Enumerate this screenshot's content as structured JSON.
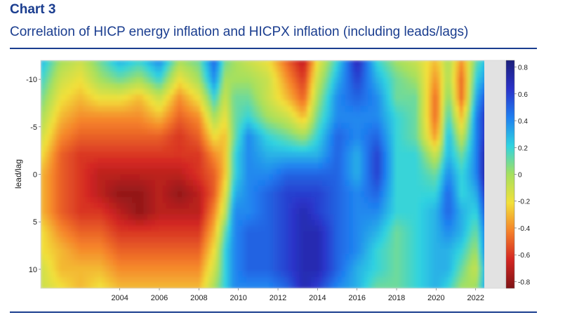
{
  "header": {
    "label": "Chart 3",
    "title": "Correlation of HICP energy inflation and HICPX inflation (including leads/lags)"
  },
  "colors": {
    "accent": "#1a3d8f",
    "colormap": [
      "#7f1416",
      "#d32622",
      "#f5812a",
      "#f2e03a",
      "#a6e05e",
      "#30d3e0",
      "#1f7ff0",
      "#2a32c8",
      "#1c1f7a"
    ]
  },
  "chart_data": {
    "type": "heatmap",
    "title": "",
    "xlabel": "",
    "ylabel": "lead/lag",
    "x_range": [
      2000.0,
      2023.5
    ],
    "data_end": 2023.1,
    "y_range": [
      -12,
      12
    ],
    "y_reversed": true,
    "x_ticks": [
      "2004",
      "2006",
      "2008",
      "2010",
      "2012",
      "2014",
      "2016",
      "2018",
      "2020",
      "2022"
    ],
    "y_ticks": [
      "-10",
      "-5",
      "0",
      "5",
      "10"
    ],
    "colorbar": {
      "min": -0.85,
      "max": 0.85,
      "ticks": [
        "0.8",
        "0.6",
        "0.4",
        "0.2",
        "0",
        "-0.2",
        "-0.4",
        "-0.6",
        "-0.8"
      ]
    },
    "grid": false,
    "y_samples": [
      -12,
      -10,
      -8,
      -6,
      -4,
      -2,
      0,
      2,
      4,
      6,
      8,
      10,
      12
    ],
    "columns": [
      {
        "x": 2000.0,
        "values": [
          0.3,
          0.2,
          0.1,
          0.0,
          -0.1,
          -0.2,
          -0.3,
          -0.3,
          -0.3,
          -0.2,
          -0.2,
          -0.1,
          -0.1
        ]
      },
      {
        "x": 2001.0,
        "values": [
          0.0,
          -0.1,
          -0.2,
          -0.3,
          -0.4,
          -0.5,
          -0.5,
          -0.5,
          -0.5,
          -0.4,
          -0.3,
          -0.3,
          -0.2
        ]
      },
      {
        "x": 2002.0,
        "values": [
          -0.1,
          -0.2,
          -0.3,
          -0.4,
          -0.5,
          -0.6,
          -0.6,
          -0.6,
          -0.6,
          -0.5,
          -0.4,
          -0.3,
          -0.3
        ]
      },
      {
        "x": 2003.0,
        "values": [
          0.1,
          0.0,
          -0.2,
          -0.4,
          -0.5,
          -0.6,
          -0.7,
          -0.7,
          -0.6,
          -0.5,
          -0.4,
          -0.3,
          -0.2
        ]
      },
      {
        "x": 2004.0,
        "values": [
          0.3,
          0.1,
          -0.2,
          -0.4,
          -0.5,
          -0.6,
          -0.7,
          -0.8,
          -0.7,
          -0.6,
          -0.5,
          -0.4,
          -0.3
        ]
      },
      {
        "x": 2005.0,
        "values": [
          0.2,
          0.0,
          -0.3,
          -0.4,
          -0.5,
          -0.6,
          -0.7,
          -0.8,
          -0.8,
          -0.6,
          -0.5,
          -0.4,
          -0.3
        ]
      },
      {
        "x": 2006.0,
        "values": [
          0.4,
          0.2,
          -0.1,
          -0.3,
          -0.5,
          -0.6,
          -0.7,
          -0.7,
          -0.7,
          -0.6,
          -0.5,
          -0.4,
          -0.3
        ]
      },
      {
        "x": 2007.0,
        "values": [
          0.0,
          -0.2,
          -0.4,
          -0.5,
          -0.6,
          -0.6,
          -0.7,
          -0.8,
          -0.7,
          -0.6,
          -0.5,
          -0.4,
          -0.3
        ]
      },
      {
        "x": 2008.0,
        "values": [
          0.1,
          0.0,
          -0.2,
          -0.4,
          -0.5,
          -0.6,
          -0.6,
          -0.7,
          -0.7,
          -0.6,
          -0.5,
          -0.4,
          -0.3
        ]
      },
      {
        "x": 2008.8,
        "values": [
          0.5,
          0.4,
          0.2,
          0.0,
          -0.2,
          -0.4,
          -0.5,
          -0.5,
          -0.4,
          -0.3,
          -0.2,
          -0.1,
          0.0
        ]
      },
      {
        "x": 2009.3,
        "values": [
          0.1,
          0.0,
          -0.1,
          -0.2,
          -0.3,
          -0.3,
          -0.3,
          -0.2,
          -0.1,
          0.1,
          0.2,
          0.2,
          0.2
        ]
      },
      {
        "x": 2009.8,
        "values": [
          0.0,
          0.0,
          0.1,
          0.1,
          0.1,
          0.2,
          0.2,
          0.3,
          0.4,
          0.4,
          0.4,
          0.4,
          0.4
        ]
      },
      {
        "x": 2010.5,
        "values": [
          -0.1,
          0.0,
          0.1,
          0.2,
          0.4,
          0.4,
          0.4,
          0.4,
          0.4,
          0.5,
          0.5,
          0.5,
          0.4
        ]
      },
      {
        "x": 2011.5,
        "values": [
          -0.2,
          -0.1,
          -0.1,
          0.0,
          0.2,
          0.3,
          0.4,
          0.5,
          0.5,
          0.5,
          0.5,
          0.5,
          0.4
        ]
      },
      {
        "x": 2012.5,
        "values": [
          -0.5,
          -0.4,
          -0.3,
          -0.1,
          0.1,
          0.3,
          0.5,
          0.6,
          0.6,
          0.6,
          0.6,
          0.6,
          0.5
        ]
      },
      {
        "x": 2013.3,
        "values": [
          -0.7,
          -0.6,
          -0.5,
          -0.3,
          0.0,
          0.3,
          0.5,
          0.6,
          0.7,
          0.7,
          0.7,
          0.7,
          0.7
        ]
      },
      {
        "x": 2014.0,
        "values": [
          -0.2,
          -0.1,
          0.0,
          0.1,
          0.2,
          0.3,
          0.5,
          0.6,
          0.6,
          0.7,
          0.7,
          0.7,
          0.6
        ]
      },
      {
        "x": 2015.0,
        "values": [
          0.2,
          0.3,
          0.4,
          0.4,
          0.5,
          0.5,
          0.5,
          0.5,
          0.5,
          0.5,
          0.5,
          0.5,
          0.4
        ]
      },
      {
        "x": 2016.0,
        "values": [
          0.7,
          0.6,
          0.5,
          0.4,
          0.4,
          0.3,
          0.3,
          0.4,
          0.4,
          0.4,
          0.4,
          0.3,
          0.3
        ]
      },
      {
        "x": 2017.0,
        "values": [
          0.2,
          0.3,
          0.4,
          0.4,
          0.5,
          0.6,
          0.6,
          0.5,
          0.4,
          0.3,
          0.2,
          0.2,
          0.1
        ]
      },
      {
        "x": 2018.0,
        "values": [
          0.0,
          0.1,
          0.1,
          0.2,
          0.2,
          0.2,
          0.2,
          0.2,
          0.2,
          0.1,
          0.1,
          0.1,
          0.1
        ]
      },
      {
        "x": 2019.0,
        "values": [
          -0.1,
          0.0,
          0.1,
          0.1,
          0.1,
          0.2,
          0.2,
          0.2,
          0.2,
          0.2,
          0.2,
          0.2,
          0.2
        ]
      },
      {
        "x": 2020.0,
        "values": [
          -0.3,
          -0.4,
          -0.5,
          -0.5,
          -0.4,
          -0.1,
          0.1,
          0.2,
          0.3,
          0.3,
          0.3,
          0.3,
          0.3
        ]
      },
      {
        "x": 2020.6,
        "values": [
          0.0,
          0.0,
          0.1,
          0.2,
          0.3,
          0.3,
          0.4,
          0.5,
          0.5,
          0.4,
          0.3,
          0.3,
          0.2
        ]
      },
      {
        "x": 2021.3,
        "values": [
          -0.4,
          -0.5,
          -0.5,
          -0.3,
          -0.1,
          0.1,
          0.2,
          0.2,
          0.3,
          0.3,
          0.2,
          0.1,
          0.0
        ]
      },
      {
        "x": 2022.0,
        "values": [
          0.1,
          0.2,
          0.3,
          0.4,
          0.4,
          0.4,
          0.4,
          0.3,
          0.2,
          0.1,
          0.0,
          -0.1,
          0.0
        ]
      },
      {
        "x": 2022.6,
        "values": [
          0.3,
          0.4,
          0.6,
          0.7,
          0.7,
          0.8,
          0.8,
          0.7,
          0.6,
          0.5,
          0.5,
          0.4,
          0.4
        ]
      },
      {
        "x": 2023.1,
        "values": [
          0.5,
          0.6,
          0.7,
          0.8,
          0.8,
          0.8,
          0.8,
          0.8,
          0.7,
          0.6,
          0.6,
          0.5,
          0.5
        ]
      }
    ]
  }
}
